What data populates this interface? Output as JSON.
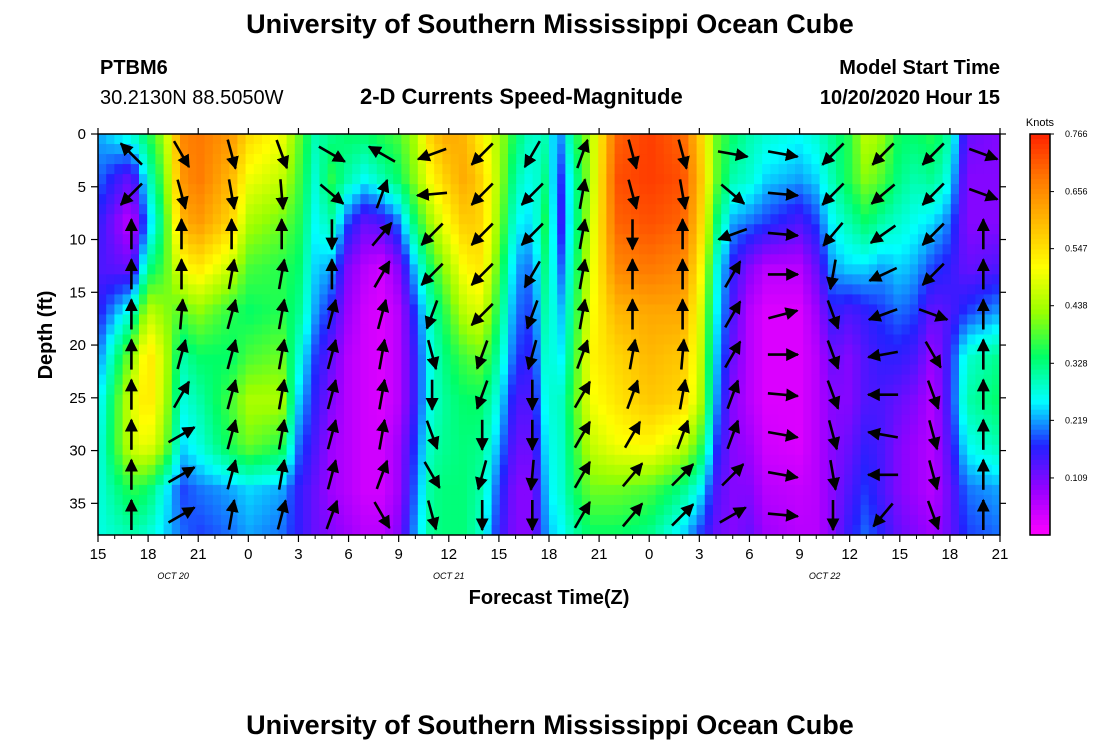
{
  "header": {
    "title": "University of Southern Mississippi Ocean Cube",
    "station": "PTBM6",
    "coords": "30.2130N 88.5050W",
    "subtitle": "2-D Currents Speed-Magnitude",
    "start_label": "Model Start Time",
    "start_value": "10/20/2020 Hour 15"
  },
  "footer": {
    "title": "University of Southern Mississippi Ocean Cube"
  },
  "chart_data": {
    "type": "heatmap",
    "xlabel": "Forecast Time(Z)",
    "ylabel": "Depth (ft)",
    "x_range": [
      0,
      54
    ],
    "ylim": [
      0,
      38
    ],
    "y_inverted": true,
    "x_ticks": [
      {
        "h": 0,
        "label": "15"
      },
      {
        "h": 3,
        "label": "18"
      },
      {
        "h": 6,
        "label": "21"
      },
      {
        "h": 9,
        "label": "0"
      },
      {
        "h": 12,
        "label": "3"
      },
      {
        "h": 15,
        "label": "6"
      },
      {
        "h": 18,
        "label": "9"
      },
      {
        "h": 21,
        "label": "12"
      },
      {
        "h": 24,
        "label": "15"
      },
      {
        "h": 27,
        "label": "18"
      },
      {
        "h": 30,
        "label": "21"
      },
      {
        "h": 33,
        "label": "0"
      },
      {
        "h": 36,
        "label": "3"
      },
      {
        "h": 39,
        "label": "6"
      },
      {
        "h": 42,
        "label": "9"
      },
      {
        "h": 45,
        "label": "12"
      },
      {
        "h": 48,
        "label": "15"
      },
      {
        "h": 51,
        "label": "18"
      },
      {
        "h": 54,
        "label": "21"
      }
    ],
    "y_ticks": [
      0,
      5,
      10,
      15,
      20,
      25,
      30,
      35
    ],
    "day_labels": [
      {
        "h": 4.5,
        "label": "OCT 20"
      },
      {
        "h": 21,
        "label": "OCT 21"
      },
      {
        "h": 43.5,
        "label": "OCT 22"
      }
    ],
    "colorbar": {
      "unit": "Knots",
      "labels": [
        "0.766",
        "0.656",
        "0.547",
        "0.438",
        "0.328",
        "0.219",
        "0.109"
      ],
      "min": 0,
      "max": 0.766,
      "colors": [
        "#ff00ff",
        "#9900ff",
        "#2222ff",
        "#00ffff",
        "#00ff66",
        "#99ff00",
        "#ffff00",
        "#ffbb00",
        "#ff7700",
        "#ff2200"
      ]
    },
    "speed_columns": [
      {
        "h": 0,
        "v": [
          0.22,
          0.2,
          0.16,
          0.14,
          0.16,
          0.2,
          0.24,
          0.26,
          0.27,
          0.27
        ]
      },
      {
        "h": 2,
        "v": [
          0.28,
          0.12,
          0.05,
          0.12,
          0.28,
          0.42,
          0.48,
          0.47,
          0.36,
          0.3
        ]
      },
      {
        "h": 3,
        "v": [
          0.35,
          0.28,
          0.22,
          0.32,
          0.46,
          0.55,
          0.55,
          0.5,
          0.34,
          0.28
        ]
      },
      {
        "h": 4,
        "v": [
          0.44,
          0.4,
          0.36,
          0.38,
          0.42,
          0.46,
          0.45,
          0.42,
          0.26,
          0.24
        ]
      },
      {
        "h": 5,
        "v": [
          0.66,
          0.64,
          0.6,
          0.5,
          0.38,
          0.3,
          0.27,
          0.24,
          0.18,
          0.2
        ]
      },
      {
        "h": 6,
        "v": [
          0.68,
          0.68,
          0.64,
          0.54,
          0.42,
          0.34,
          0.3,
          0.27,
          0.2,
          0.18
        ]
      },
      {
        "h": 8,
        "v": [
          0.64,
          0.6,
          0.56,
          0.46,
          0.36,
          0.34,
          0.38,
          0.36,
          0.22,
          0.2
        ]
      },
      {
        "h": 9,
        "v": [
          0.56,
          0.5,
          0.44,
          0.38,
          0.34,
          0.38,
          0.44,
          0.4,
          0.24,
          0.22
        ]
      },
      {
        "h": 11,
        "v": [
          0.5,
          0.46,
          0.4,
          0.36,
          0.36,
          0.4,
          0.44,
          0.36,
          0.22,
          0.2
        ]
      },
      {
        "h": 12,
        "v": [
          0.4,
          0.38,
          0.36,
          0.34,
          0.32,
          0.28,
          0.24,
          0.2,
          0.16,
          0.16
        ]
      },
      {
        "h": 13,
        "v": [
          0.3,
          0.28,
          0.26,
          0.24,
          0.22,
          0.18,
          0.16,
          0.14,
          0.12,
          0.12
        ]
      },
      {
        "h": 14,
        "v": [
          0.32,
          0.36,
          0.3,
          0.22,
          0.16,
          0.12,
          0.1,
          0.08,
          0.08,
          0.1
        ]
      },
      {
        "h": 15,
        "v": [
          0.34,
          0.3,
          0.18,
          0.1,
          0.08,
          0.06,
          0.06,
          0.06,
          0.06,
          0.08
        ]
      },
      {
        "h": 16,
        "v": [
          0.34,
          0.26,
          0.12,
          0.06,
          0.04,
          0.04,
          0.04,
          0.04,
          0.04,
          0.06
        ]
      },
      {
        "h": 17,
        "v": [
          0.36,
          0.3,
          0.14,
          0.04,
          0.03,
          0.03,
          0.03,
          0.04,
          0.04,
          0.06
        ]
      },
      {
        "h": 18,
        "v": [
          0.38,
          0.34,
          0.2,
          0.1,
          0.06,
          0.06,
          0.06,
          0.08,
          0.08,
          0.1
        ]
      },
      {
        "h": 19,
        "v": [
          0.44,
          0.42,
          0.34,
          0.24,
          0.18,
          0.16,
          0.16,
          0.18,
          0.2,
          0.22
        ]
      },
      {
        "h": 20,
        "v": [
          0.58,
          0.52,
          0.44,
          0.36,
          0.3,
          0.28,
          0.28,
          0.3,
          0.32,
          0.32
        ]
      },
      {
        "h": 21,
        "v": [
          0.62,
          0.58,
          0.52,
          0.44,
          0.38,
          0.34,
          0.32,
          0.32,
          0.33,
          0.33
        ]
      },
      {
        "h": 22,
        "v": [
          0.6,
          0.62,
          0.58,
          0.52,
          0.46,
          0.38,
          0.34,
          0.33,
          0.33,
          0.33
        ]
      },
      {
        "h": 23,
        "v": [
          0.52,
          0.56,
          0.56,
          0.54,
          0.48,
          0.4,
          0.34,
          0.32,
          0.3,
          0.28
        ]
      },
      {
        "h": 24,
        "v": [
          0.44,
          0.44,
          0.42,
          0.38,
          0.34,
          0.3,
          0.26,
          0.22,
          0.18,
          0.16
        ]
      },
      {
        "h": 25,
        "v": [
          0.34,
          0.3,
          0.26,
          0.22,
          0.2,
          0.18,
          0.14,
          0.12,
          0.1,
          0.1
        ]
      },
      {
        "h": 26,
        "v": [
          0.28,
          0.26,
          0.24,
          0.2,
          0.18,
          0.16,
          0.14,
          0.12,
          0.1,
          0.1
        ]
      },
      {
        "h": 27,
        "v": [
          0.3,
          0.34,
          0.38,
          0.36,
          0.34,
          0.32,
          0.3,
          0.28,
          0.26,
          0.24
        ]
      },
      {
        "h": 27.5,
        "v": [
          0.18,
          0.14,
          0.12,
          0.16,
          0.2,
          0.22,
          0.26,
          0.26,
          0.26,
          0.24
        ]
      },
      {
        "h": 28.5,
        "v": [
          0.34,
          0.3,
          0.3,
          0.32,
          0.34,
          0.36,
          0.38,
          0.36,
          0.34,
          0.3
        ]
      },
      {
        "h": 29.5,
        "v": [
          0.44,
          0.44,
          0.46,
          0.48,
          0.5,
          0.52,
          0.5,
          0.46,
          0.4,
          0.34
        ]
      },
      {
        "h": 31,
        "v": [
          0.7,
          0.72,
          0.7,
          0.66,
          0.6,
          0.56,
          0.54,
          0.5,
          0.4,
          0.34
        ]
      },
      {
        "h": 33,
        "v": [
          0.74,
          0.74,
          0.72,
          0.68,
          0.62,
          0.6,
          0.58,
          0.52,
          0.38,
          0.32
        ]
      },
      {
        "h": 35,
        "v": [
          0.7,
          0.72,
          0.7,
          0.66,
          0.62,
          0.58,
          0.56,
          0.46,
          0.32,
          0.24
        ]
      },
      {
        "h": 36,
        "v": [
          0.58,
          0.6,
          0.58,
          0.54,
          0.5,
          0.48,
          0.46,
          0.38,
          0.26,
          0.18
        ]
      },
      {
        "h": 37,
        "v": [
          0.4,
          0.4,
          0.34,
          0.28,
          0.26,
          0.24,
          0.22,
          0.18,
          0.14,
          0.12
        ]
      },
      {
        "h": 38,
        "v": [
          0.34,
          0.3,
          0.22,
          0.16,
          0.14,
          0.12,
          0.1,
          0.1,
          0.1,
          0.1
        ]
      },
      {
        "h": 39,
        "v": [
          0.3,
          0.28,
          0.2,
          0.1,
          0.06,
          0.06,
          0.06,
          0.08,
          0.1,
          0.12
        ]
      },
      {
        "h": 40,
        "v": [
          0.28,
          0.24,
          0.18,
          0.06,
          0.03,
          0.03,
          0.03,
          0.04,
          0.06,
          0.08
        ]
      },
      {
        "h": 42,
        "v": [
          0.26,
          0.22,
          0.14,
          0.06,
          0.03,
          0.03,
          0.03,
          0.03,
          0.05,
          0.06
        ]
      },
      {
        "h": 43,
        "v": [
          0.28,
          0.24,
          0.18,
          0.12,
          0.08,
          0.06,
          0.06,
          0.06,
          0.06,
          0.06
        ]
      },
      {
        "h": 44,
        "v": [
          0.32,
          0.3,
          0.26,
          0.22,
          0.16,
          0.12,
          0.1,
          0.1,
          0.1,
          0.1
        ]
      },
      {
        "h": 45,
        "v": [
          0.36,
          0.36,
          0.3,
          0.24,
          0.14,
          0.1,
          0.1,
          0.12,
          0.14,
          0.16
        ]
      },
      {
        "h": 46,
        "v": [
          0.46,
          0.42,
          0.34,
          0.24,
          0.16,
          0.14,
          0.14,
          0.16,
          0.18,
          0.2
        ]
      },
      {
        "h": 47,
        "v": [
          0.42,
          0.38,
          0.3,
          0.22,
          0.18,
          0.16,
          0.14,
          0.14,
          0.14,
          0.16
        ]
      },
      {
        "h": 48,
        "v": [
          0.34,
          0.32,
          0.28,
          0.24,
          0.2,
          0.16,
          0.12,
          0.1,
          0.1,
          0.12
        ]
      },
      {
        "h": 49,
        "v": [
          0.34,
          0.3,
          0.26,
          0.22,
          0.18,
          0.14,
          0.1,
          0.08,
          0.08,
          0.1
        ]
      },
      {
        "h": 50,
        "v": [
          0.36,
          0.32,
          0.24,
          0.18,
          0.12,
          0.08,
          0.06,
          0.06,
          0.06,
          0.08
        ]
      },
      {
        "h": 51,
        "v": [
          0.3,
          0.26,
          0.2,
          0.16,
          0.14,
          0.16,
          0.16,
          0.14,
          0.12,
          0.12
        ]
      },
      {
        "h": 52,
        "v": [
          0.12,
          0.1,
          0.1,
          0.12,
          0.18,
          0.28,
          0.3,
          0.26,
          0.2,
          0.18
        ]
      },
      {
        "h": 54,
        "v": [
          0.1,
          0.1,
          0.1,
          0.14,
          0.22,
          0.32,
          0.34,
          0.3,
          0.22,
          0.2
        ]
      }
    ],
    "vector_samples": [
      {
        "h": 2,
        "a": [
          315,
          225,
          0,
          0,
          0,
          0,
          0,
          0,
          0,
          0
        ]
      },
      {
        "h": 5,
        "a": [
          150,
          165,
          0,
          0,
          5,
          15,
          30,
          60,
          60,
          60
        ]
      },
      {
        "h": 8,
        "a": [
          165,
          170,
          0,
          10,
          15,
          15,
          15,
          15,
          15,
          10
        ]
      },
      {
        "h": 11,
        "a": [
          160,
          175,
          0,
          10,
          10,
          10,
          10,
          10,
          10,
          15
        ]
      },
      {
        "h": 14,
        "a": [
          120,
          130,
          180,
          0,
          15,
          15,
          15,
          15,
          15,
          20
        ]
      },
      {
        "h": 17,
        "a": [
          300,
          20,
          40,
          30,
          15,
          10,
          10,
          10,
          20,
          150
        ]
      },
      {
        "h": 20,
        "a": [
          250,
          265,
          225,
          225,
          200,
          165,
          180,
          160,
          150,
          165
        ]
      },
      {
        "h": 23,
        "a": [
          225,
          225,
          225,
          225,
          225,
          200,
          200,
          180,
          195,
          180
        ]
      },
      {
        "h": 26,
        "a": [
          210,
          225,
          225,
          210,
          200,
          195,
          180,
          180,
          185,
          180
        ]
      },
      {
        "h": 29,
        "a": [
          20,
          10,
          10,
          10,
          10,
          20,
          30,
          30,
          30,
          30
        ]
      },
      {
        "h": 32,
        "a": [
          165,
          165,
          180,
          0,
          0,
          10,
          20,
          30,
          40,
          40
        ]
      },
      {
        "h": 35,
        "a": [
          165,
          170,
          0,
          0,
          0,
          5,
          10,
          20,
          45,
          45
        ]
      },
      {
        "h": 38,
        "a": [
          100,
          130,
          250,
          30,
          30,
          30,
          20,
          20,
          45,
          60
        ]
      },
      {
        "h": 41,
        "a": [
          100,
          95,
          95,
          90,
          75,
          90,
          95,
          100,
          100,
          95
        ]
      },
      {
        "h": 44,
        "a": [
          225,
          225,
          220,
          190,
          160,
          160,
          160,
          165,
          170,
          180
        ]
      },
      {
        "h": 47,
        "a": [
          225,
          230,
          235,
          245,
          250,
          260,
          270,
          280,
          270,
          220
        ]
      },
      {
        "h": 50,
        "a": [
          225,
          225,
          225,
          225,
          110,
          150,
          160,
          165,
          165,
          160
        ]
      },
      {
        "h": 53,
        "a": [
          110,
          110,
          0,
          0,
          0,
          0,
          0,
          0,
          0,
          0
        ]
      }
    ]
  }
}
